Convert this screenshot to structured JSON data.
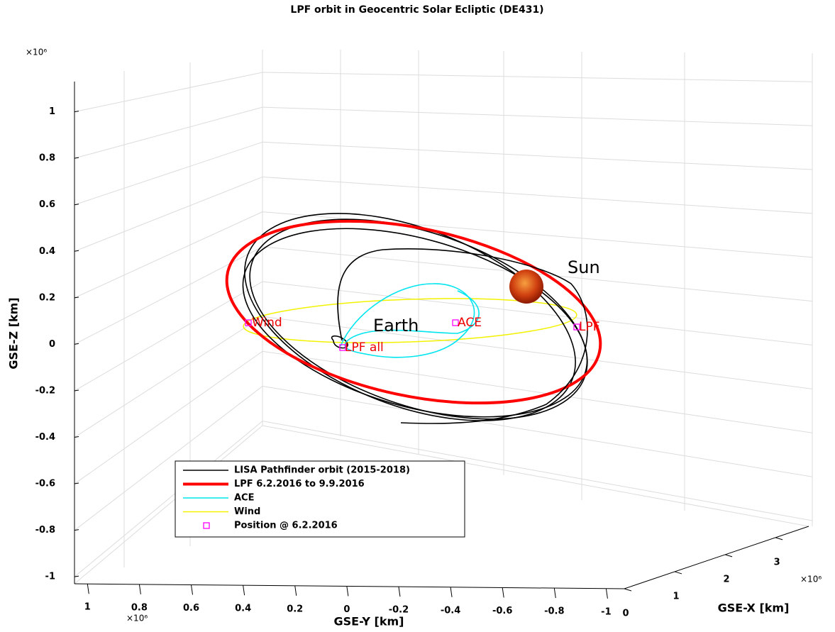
{
  "chart_data": {
    "type": "line3d",
    "title": "LPF orbit in Geocentric Solar Ecliptic (DE431)",
    "zlabel": "GSE-Z [km]",
    "ylabel": "GSE-Y [km]",
    "xlabel": "GSE-X [km]",
    "z_exponent": "×10⁶",
    "y_exponent": "×10⁶",
    "x_exponent": "×10⁶",
    "zlim": [
      -1.03,
      1.13
    ],
    "zticks": [
      1,
      0.8,
      0.6,
      0.4,
      0.2,
      0,
      -0.2,
      -0.4,
      -0.6,
      -0.8,
      -1
    ],
    "ylim": [
      1.05,
      -1.07
    ],
    "yticks": [
      1,
      0.8,
      0.6,
      0.4,
      0.2,
      0,
      -0.2,
      -0.4,
      -0.6,
      -0.8,
      -1
    ],
    "xlim": [
      0,
      3.66
    ],
    "xticks": [
      0,
      1,
      2,
      3
    ],
    "grid": true,
    "series": [
      {
        "name": "LISA Pathfinder orbit (2015-2018)",
        "color": "#000000"
      },
      {
        "name": "LPF 6.2.2016 to 9.9.2016",
        "color": "#ff0000"
      },
      {
        "name": "ACE",
        "color": "#00e5ee"
      },
      {
        "name": "Wind",
        "color": "#f2f200"
      },
      {
        "name": "Position @ 6.2.2016",
        "color": "#ff00ff"
      }
    ],
    "annotations": [
      "Sun",
      "Earth",
      "Wind",
      "ACE",
      "LPF",
      "LPF all"
    ]
  }
}
